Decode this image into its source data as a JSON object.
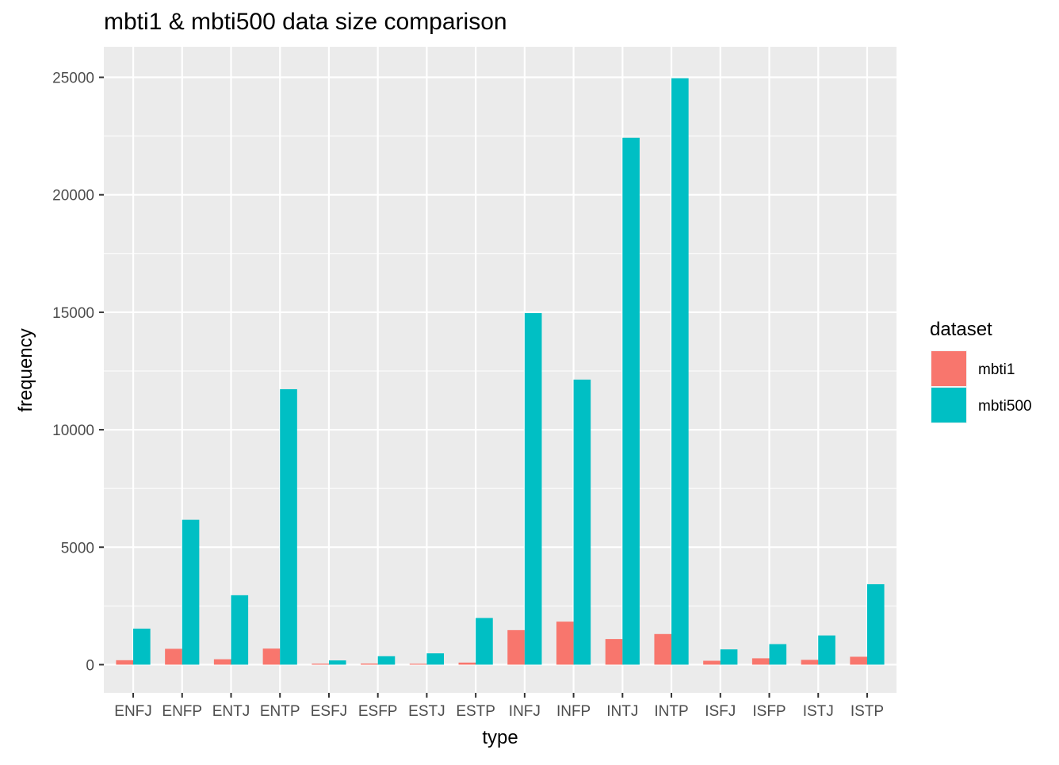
{
  "chart_data": {
    "type": "bar",
    "title": "mbti1 & mbti500 data size comparison",
    "xlabel": "type",
    "ylabel": "frequency",
    "categories": [
      "ENFJ",
      "ENFP",
      "ENTJ",
      "ENTP",
      "ESFJ",
      "ESFP",
      "ESTJ",
      "ESTP",
      "INFJ",
      "INFP",
      "INTJ",
      "INTP",
      "ISFJ",
      "ISFP",
      "ISTJ",
      "ISTP"
    ],
    "ylim": [
      -1200,
      26300
    ],
    "yticks": [
      0,
      5000,
      10000,
      15000,
      20000,
      25000
    ],
    "ytick_labels": [
      "0",
      "5000",
      "10000",
      "15000",
      "20000",
      "25000"
    ],
    "grid": true,
    "legend": {
      "title": "dataset",
      "placement": "right"
    },
    "series": [
      {
        "name": "mbti1",
        "color": "#F8766D",
        "values": [
          190,
          675,
          231,
          685,
          42,
          48,
          39,
          89,
          1470,
          1832,
          1091,
          1304,
          166,
          271,
          205,
          337
        ]
      },
      {
        "name": "mbti500",
        "color": "#00BFC4",
        "values": [
          1534,
          6167,
          2955,
          11725,
          181,
          360,
          482,
          1986,
          14963,
          12134,
          22427,
          24961,
          650,
          875,
          1243,
          3424
        ]
      }
    ]
  }
}
